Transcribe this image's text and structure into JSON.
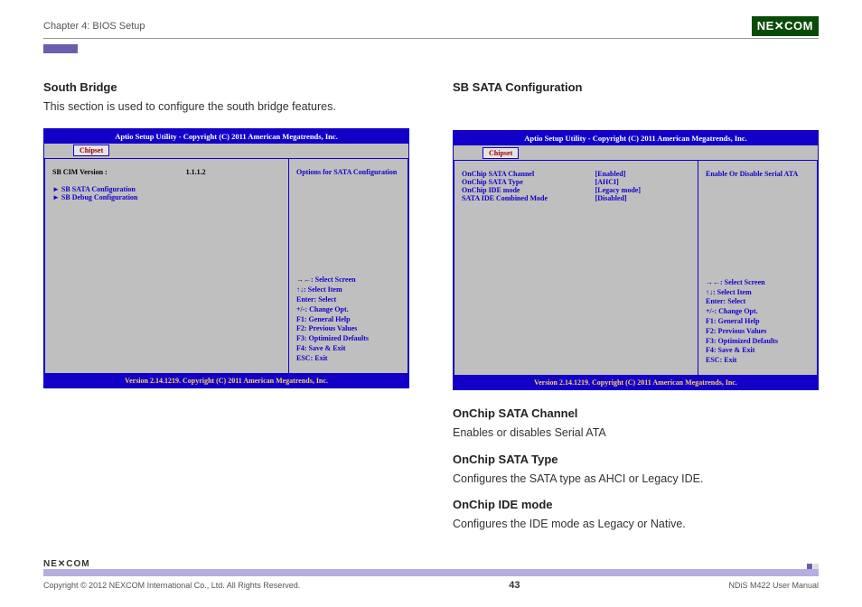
{
  "header": {
    "chapter": "Chapter 4: BIOS Setup",
    "logo_text": "NE✕COM"
  },
  "left": {
    "title": "South Bridge",
    "intro": "This section is used to configure the south bridge features.",
    "bios": {
      "title": "Aptio Setup Utility - Copyright (C) 2011 American Megatrends, Inc.",
      "tab": "Chipset",
      "rows": [
        {
          "label": "SB CIM Version :",
          "value": "1.1.1.2",
          "label_color": "#000000",
          "value_color": "#000000"
        },
        {
          "label": "► SB SATA Configuration",
          "value": "",
          "label_color": "#1200c8",
          "value_color": ""
        },
        {
          "label": "► SB Debug Configuration",
          "value": "",
          "label_color": "#1200c8",
          "value_color": ""
        }
      ],
      "help_title": "Options for SATA Configuration",
      "help_keys": [
        "→←: Select Screen",
        "↑↓: Select Item",
        "Enter: Select",
        "+/-: Change Opt.",
        "F1: General Help",
        "F2: Previous Values",
        "F3: Optimized Defaults",
        "F4: Save & Exit",
        "ESC: Exit"
      ],
      "footer": "Version 2.14.1219. Copyright (C) 2011 American Megatrends, Inc."
    }
  },
  "right": {
    "title": "SB SATA Configuration",
    "bios": {
      "title": "Aptio Setup Utility - Copyright (C) 2011 American Megatrends, Inc.",
      "tab": "Chipset",
      "rows": [
        {
          "label": "OnChip SATA Channel",
          "value": "[Enabled]",
          "label_color": "#1200c8",
          "value_color": "#1200c8"
        },
        {
          "label": "OnChip SATA Type",
          "value": "[AHCI]",
          "label_color": "#1200c8",
          "value_color": "#1200c8"
        },
        {
          "label": "OnChip IDE mode",
          "value": "[Legacy mode]",
          "label_color": "#1200c8",
          "value_color": "#1200c8"
        },
        {
          "label": "SATA IDE Combined Mode",
          "value": "[Disabled]",
          "label_color": "#1200c8",
          "value_color": "#1200c8"
        }
      ],
      "help_title": "Enable Or Disable Serial ATA",
      "help_keys": [
        "→←: Select Screen",
        "↑↓: Select Item",
        "Enter: Select",
        "+/-: Change Opt.",
        "F1: General Help",
        "F2: Previous Values",
        "F3: Optimized Defaults",
        "F4: Save & Exit",
        "ESC: Exit"
      ],
      "footer": "Version 2.14.1219. Copyright (C) 2011 American Megatrends, Inc."
    },
    "sections": [
      {
        "title": "OnChip SATA Channel",
        "body": "Enables or disables Serial ATA"
      },
      {
        "title": "OnChip SATA Type",
        "body": "Configures the SATA type as AHCI or Legacy IDE."
      },
      {
        "title": "OnChip IDE mode",
        "body": "Configures the IDE mode as Legacy or Native."
      }
    ]
  },
  "footer": {
    "logo": "NE✕COM",
    "copyright": "Copyright © 2012 NEXCOM International Co., Ltd. All Rights Reserved.",
    "page": "43",
    "doc": "NDiS M422 User Manual"
  },
  "colors": {
    "bios_blue": "#1200c8",
    "bios_gray": "#bfbfbf",
    "bios_footer_gold": "#ffd060",
    "purple_bar": "#6a5fae",
    "footer_bar": "#b4aee0",
    "logo_green": "#0a4b0a"
  }
}
